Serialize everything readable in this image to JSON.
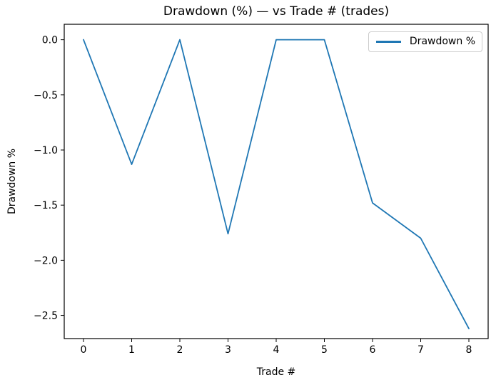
{
  "chart_data": {
    "type": "line",
    "title": "Drawdown (%) — vs Trade # (trades)",
    "xlabel": "Trade #",
    "ylabel": "Drawdown %",
    "x": [
      0,
      1,
      2,
      3,
      4,
      5,
      6,
      7,
      8
    ],
    "series": [
      {
        "name": "Drawdown %",
        "color": "#1f77b4",
        "values": [
          0.0,
          -1.13,
          0.0,
          -1.76,
          0.0,
          0.0,
          -1.48,
          -1.8,
          -2.62
        ]
      }
    ],
    "xticks": [
      0,
      1,
      2,
      3,
      4,
      5,
      6,
      7,
      8
    ],
    "yticks": [
      0.0,
      -0.5,
      -1.0,
      -1.5,
      -2.0,
      -2.5
    ],
    "xlim": [
      -0.4,
      8.4
    ],
    "ylim": [
      -2.71,
      0.14
    ],
    "grid": false,
    "legend": {
      "position": "upper-right",
      "label": "Drawdown %"
    },
    "axis_color": "#000000",
    "background": "#ffffff"
  }
}
